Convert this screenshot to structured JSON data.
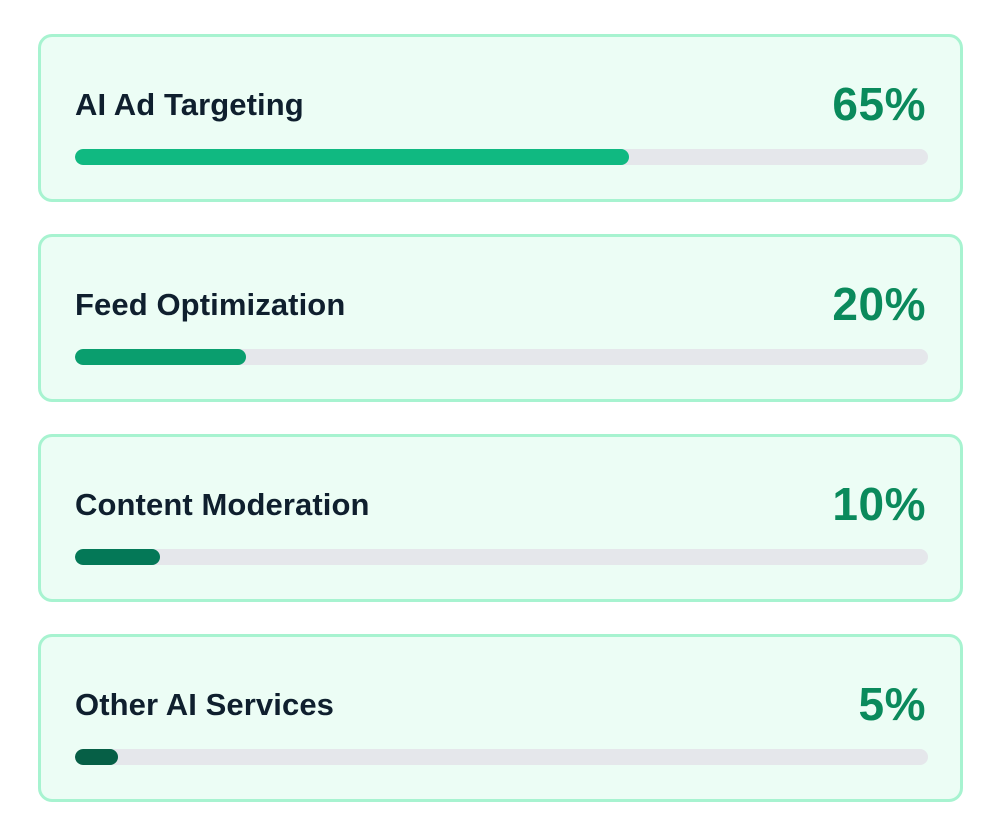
{
  "items": [
    {
      "label": "AI Ad Targeting",
      "value_text": "65%",
      "fraction": 0.65,
      "color": "#10b981"
    },
    {
      "label": "Feed Optimization",
      "value_text": "20%",
      "fraction": 0.2,
      "color": "#0a9e6e"
    },
    {
      "label": "Content Moderation",
      "value_text": "10%",
      "fraction": 0.1,
      "color": "#047857"
    },
    {
      "label": "Other AI Services",
      "value_text": "5%",
      "fraction": 0.05,
      "color": "#065f46"
    }
  ]
}
